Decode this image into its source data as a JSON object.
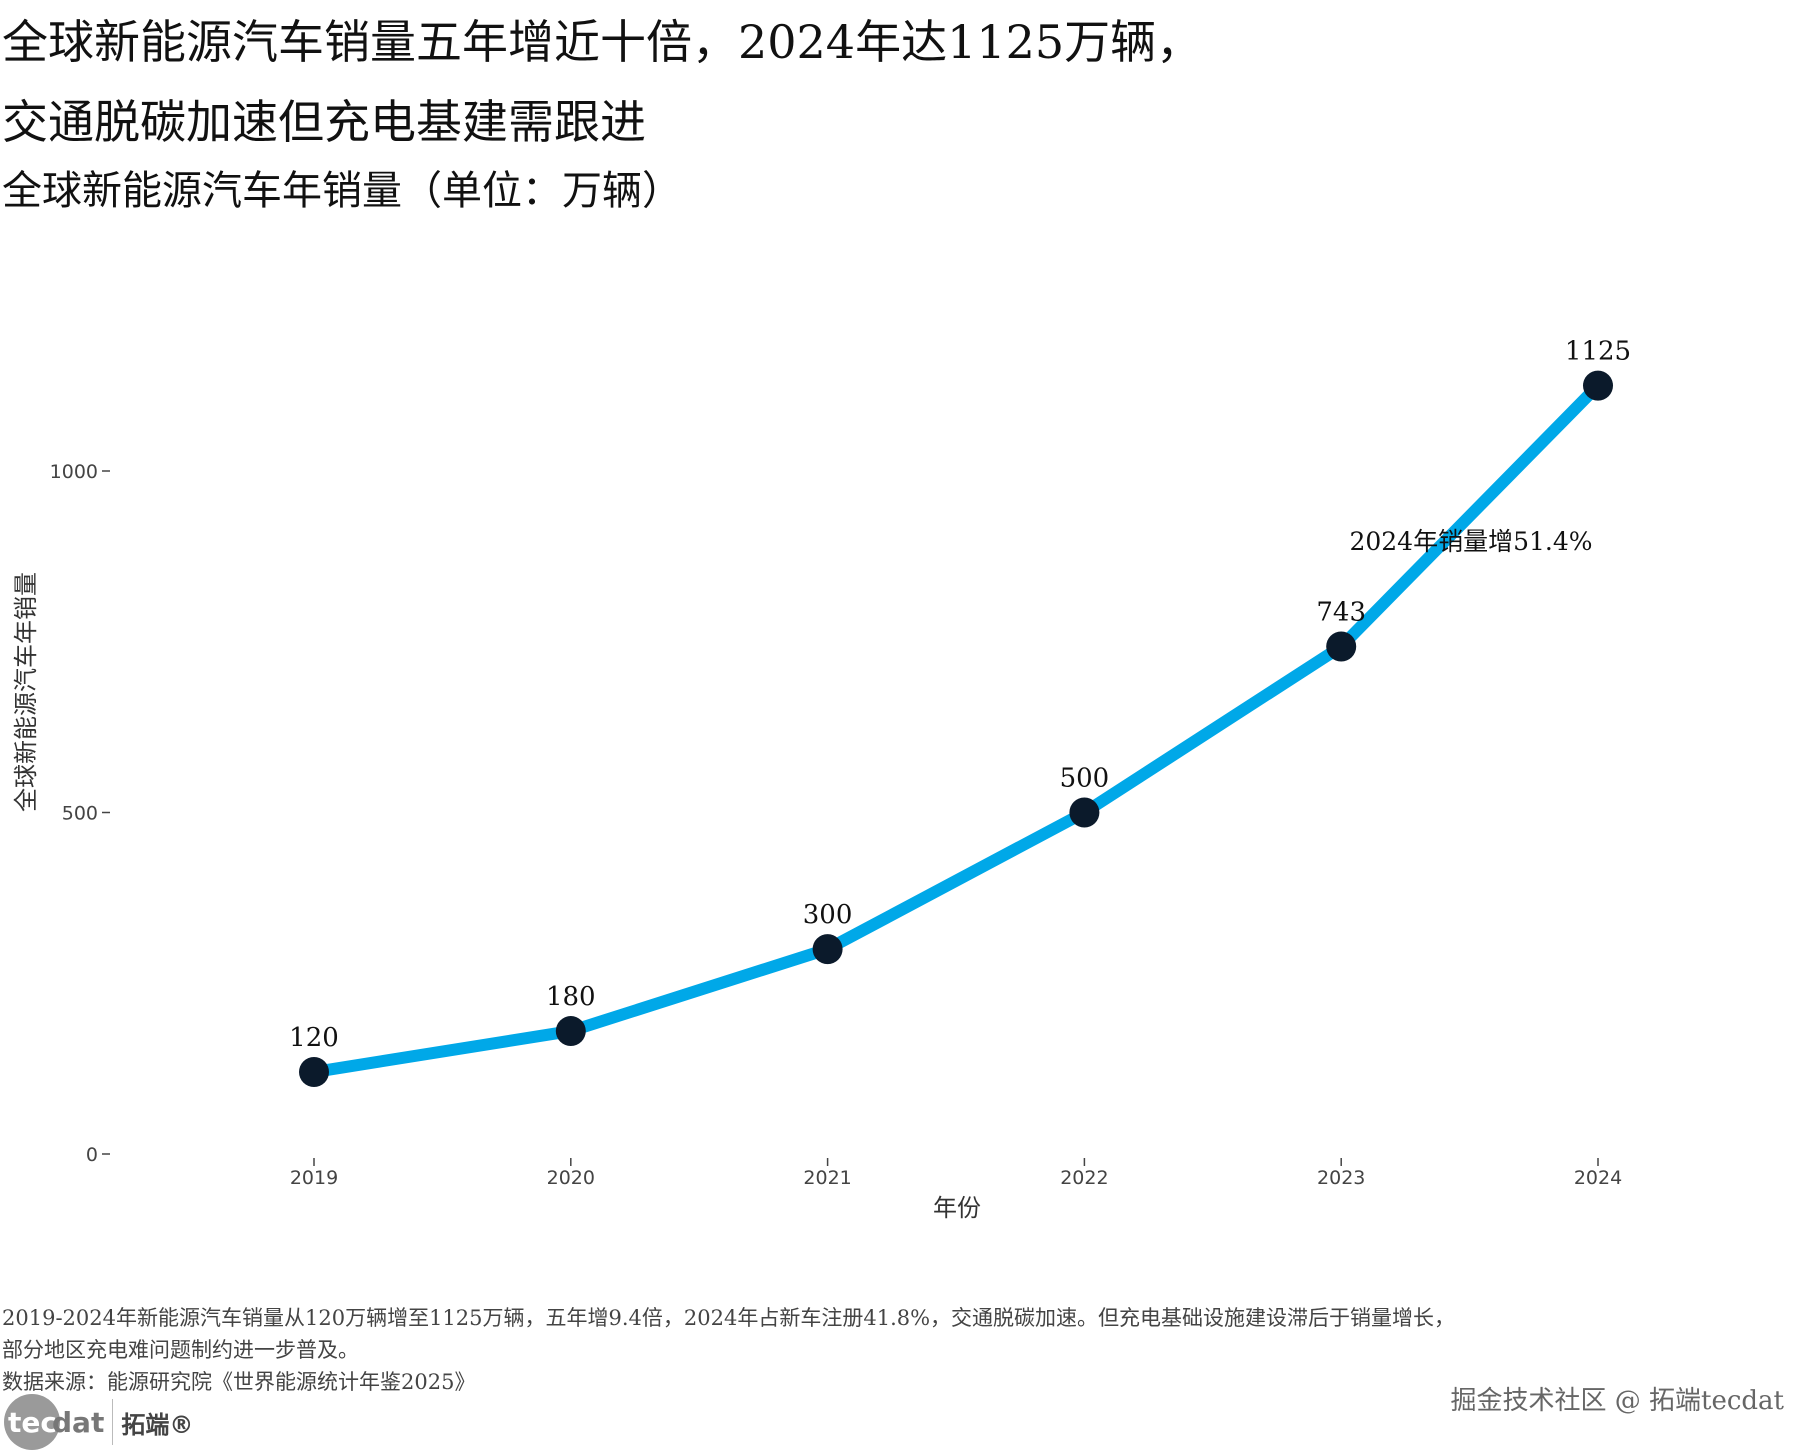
{
  "header": {
    "title_line1": "全球新能源汽车销量五年增近十倍，2024年达1125万辆，",
    "title_line2": "交通脱碳加速但充电基建需跟进",
    "subtitle": "全球新能源汽车年销量（单位：万辆）"
  },
  "chart_data": {
    "type": "line",
    "title": "全球新能源汽车年销量（单位：万辆）",
    "xlabel": "年份",
    "ylabel": "全球新能源汽车年销量",
    "categories": [
      "2019",
      "2020",
      "2021",
      "2022",
      "2023",
      "2024"
    ],
    "values": [
      120,
      180,
      300,
      500,
      743,
      1125
    ],
    "data_labels": [
      "120",
      "180",
      "300",
      "500",
      "743",
      "1125"
    ],
    "yticks": [
      0,
      500,
      1000
    ],
    "ytick_labels": [
      "0",
      "500",
      "1000"
    ],
    "ylim": [
      0,
      1125
    ],
    "grid": false,
    "annotation": "2024年销量增51.4%",
    "colors": {
      "line": "#00a8e8",
      "point": "#0b1a2b"
    }
  },
  "footer": {
    "note_line1": "2019-2024年新能源汽车销量从120万辆增至1125万辆，五年增9.4倍，2024年占新车注册41.8%，交通脱碳加速。但充电基础设施建设滞后于销量增长，",
    "note_line2": "部分地区充电难问题制约进一步普及。",
    "source": "数据来源：能源研究院《世界能源统计年鉴2025》",
    "logo_tec": "tec",
    "logo_dat": "dat",
    "logo_cn": "拓端®",
    "watermark": "掘金技术社区 @ 拓端tecdat"
  }
}
